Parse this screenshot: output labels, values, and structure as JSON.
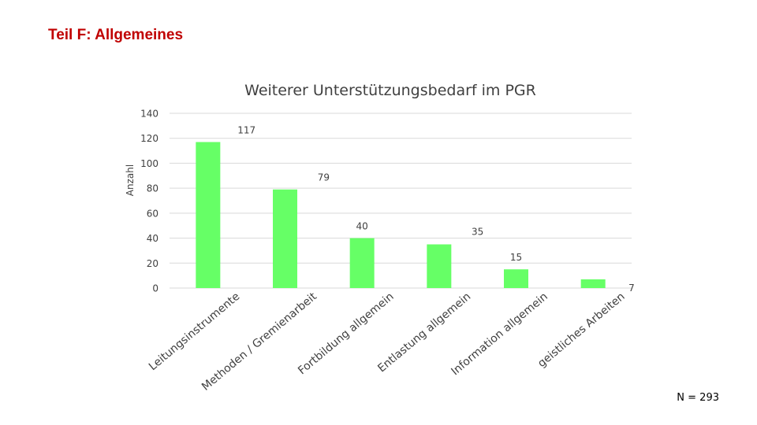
{
  "page": {
    "heading": "Teil F: Allgemeines",
    "sample_size": "N = 293"
  },
  "colors": {
    "heading": "#c00000",
    "bar": "#66ff66",
    "grid": "#d9d9d9",
    "text": "#404040"
  },
  "chart_data": {
    "type": "bar",
    "title": "Weiterer Unterstützungsbedarf im PGR",
    "xlabel": "",
    "ylabel": "Anzahl",
    "ylim": [
      0,
      140
    ],
    "yticks": [
      0,
      20,
      40,
      60,
      80,
      100,
      120,
      140
    ],
    "grid": true,
    "legend": "none",
    "categories": [
      "Leitungsinstrumente",
      "Methoden / Gremienarbeit",
      "Fortbildung allgemein",
      "Entlastung allgemein",
      "Information allgemein",
      "geistliches Arbeiten"
    ],
    "values": [
      117,
      79,
      40,
      35,
      15,
      7
    ],
    "data_labels": [
      "117",
      "79",
      "40",
      "35",
      "15",
      "7"
    ]
  }
}
